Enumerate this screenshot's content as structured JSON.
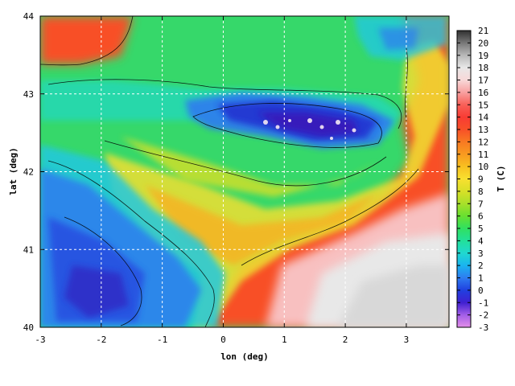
{
  "chart_data": {
    "type": "heatmap",
    "title": "",
    "xlabel": "lon (deg)",
    "ylabel": "lat (deg)",
    "xlim": [
      -3,
      3.7
    ],
    "ylim": [
      40,
      44
    ],
    "x_ticks": [
      -3,
      -2,
      -1,
      0,
      1,
      2,
      3
    ],
    "y_ticks": [
      40,
      41,
      42,
      43,
      44
    ],
    "grid": true,
    "colorbar": {
      "label": "T (C)",
      "min": -3,
      "max": 21,
      "ticks": [
        -3,
        -2,
        -1,
        0,
        1,
        2,
        3,
        4,
        5,
        6,
        7,
        8,
        9,
        10,
        11,
        12,
        13,
        14,
        15,
        16,
        17,
        18,
        19,
        20,
        21
      ],
      "colors": [
        "#e28ee8",
        "#a35ee8",
        "#4020d0",
        "#2040e0",
        "#2e7cf0",
        "#1ab4f0",
        "#20d8d0",
        "#22e09a",
        "#30e060",
        "#68e030",
        "#a8e02a",
        "#d8e028",
        "#f8e030",
        "#f8c020",
        "#f89a20",
        "#f87a22",
        "#f85028",
        "#f83c34",
        "#f86058",
        "#f8a0a0",
        "#f8d8d8",
        "#e8e8e8",
        "#b8b8b8",
        "#787878",
        "#303030"
      ]
    }
  }
}
